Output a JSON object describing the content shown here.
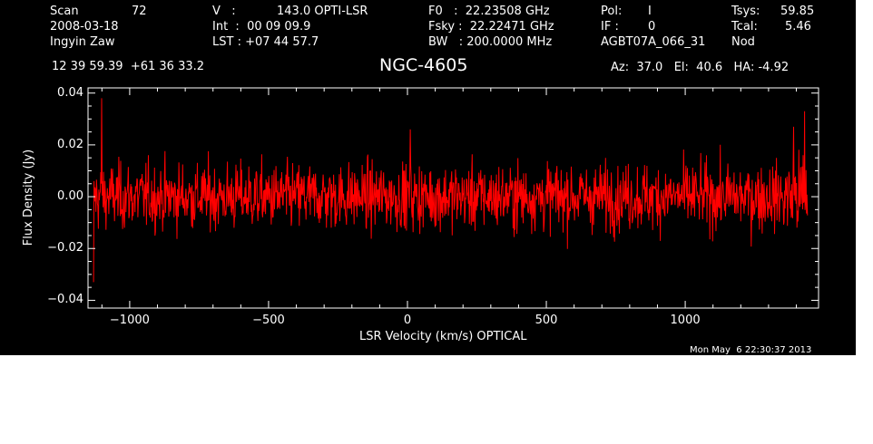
{
  "header": {
    "row1": [
      "Scan",
      "72",
      "V   :",
      "143.0 OPTI-LSR",
      "F0   :  22.23508 GHz",
      "Pol:",
      "I",
      "Tsys:",
      "59.85"
    ],
    "row2": [
      "2008-03-18",
      "Int  :  00 09 09.9",
      "Fsky :  22.22471 GHz",
      "IF :",
      "0",
      "Tcal:",
      "5.46"
    ],
    "row3": [
      "Ingyin Zaw",
      "LST : +07 44 57.7",
      "BW   : 200.0000 MHz",
      "AGBT07A_066_31",
      "Nod"
    ],
    "coords": "12 39 59.39  +61 36 33.2",
    "object": "NGC-4605",
    "azel": "Az:  37.0   El:  40.6   HA: -4.92",
    "timestamp": "Mon May  6 22:30:37 2013"
  },
  "chart_data": {
    "type": "line",
    "xlabel": "LSR Velocity (km/s) OPTICAL",
    "ylabel": "Flux Density (Jy)",
    "xlim": [
      -1150,
      1480
    ],
    "ylim": [
      -0.043,
      0.042
    ],
    "xticks": [
      -1000,
      -500,
      0,
      500,
      1000
    ],
    "xtick_labels": [
      "−1000",
      "−500",
      "0",
      "500",
      "1000"
    ],
    "yticks": [
      -0.04,
      -0.02,
      0.0,
      0.02,
      0.04
    ],
    "ytick_labels": [
      "−0.04",
      "−0.02",
      "0.00",
      "0.02",
      "0.04"
    ],
    "series": [
      {
        "color": "#ff0000",
        "x_range": [
          -1130,
          1440
        ],
        "noise_rms": 0.009,
        "notable_points": [
          {
            "x": -1130,
            "y": -0.033
          },
          {
            "x": -1100,
            "y": 0.038
          },
          {
            "x": 10,
            "y": 0.026
          },
          {
            "x": 1390,
            "y": 0.027
          },
          {
            "x": 1430,
            "y": 0.033
          }
        ]
      }
    ]
  }
}
